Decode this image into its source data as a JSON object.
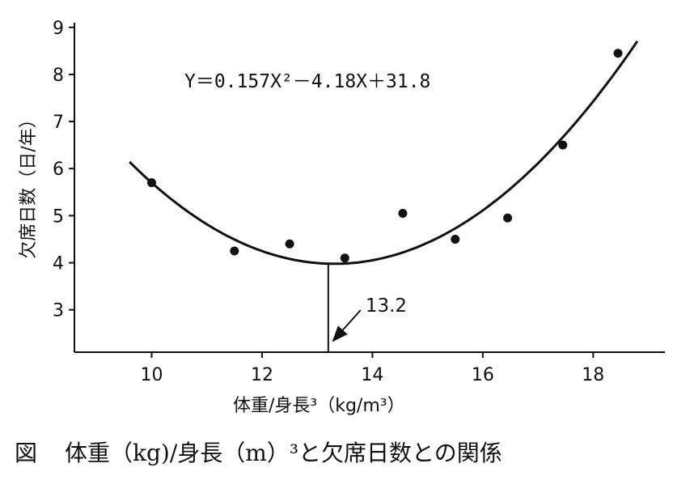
{
  "chart_data": {
    "type": "scatter",
    "title": "",
    "xlabel": "体重/身長³（kg/m³）",
    "ylabel": "欠席日数（日/年）",
    "xlim": [
      8.6,
      19.3
    ],
    "ylim": [
      2.1,
      9.1
    ],
    "xticks": [
      "10",
      "12",
      "14",
      "16",
      "18"
    ],
    "yticks": [
      "3",
      "4",
      "5",
      "6",
      "7",
      "8",
      "9"
    ],
    "grid": false,
    "points": [
      {
        "x": 10.0,
        "y": 5.7
      },
      {
        "x": 11.5,
        "y": 4.25
      },
      {
        "x": 12.5,
        "y": 4.4
      },
      {
        "x": 13.5,
        "y": 4.1
      },
      {
        "x": 14.55,
        "y": 5.05
      },
      {
        "x": 15.5,
        "y": 4.5
      },
      {
        "x": 16.45,
        "y": 4.95
      },
      {
        "x": 17.45,
        "y": 6.5
      },
      {
        "x": 18.45,
        "y": 8.45
      }
    ],
    "fit": {
      "equation": "Y＝0.157X²－4.18X＋31.8",
      "a": 0.157,
      "b": -4.18,
      "c": 31.8,
      "x_range": [
        9.6,
        18.8
      ]
    },
    "annotation": {
      "label": "13.2",
      "x": 13.2
    }
  },
  "caption": {
    "figure_label": "図",
    "text": "体重（kg)/身長（m）³と欠席日数との関係"
  }
}
